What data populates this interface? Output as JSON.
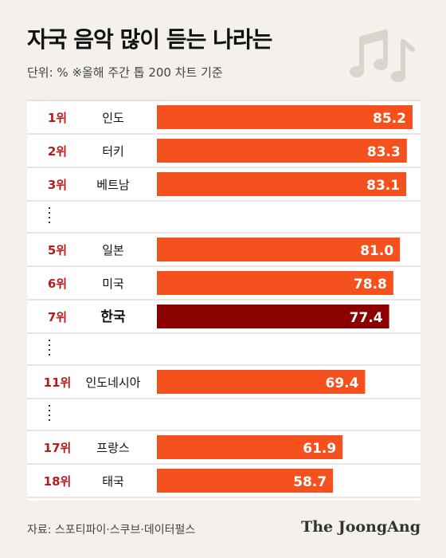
{
  "header": {
    "title": "자국 음악 많이 듣는 나라는",
    "unit": "단위: %   ※올해 주간 톱 200 차트 기준"
  },
  "footer": {
    "source": "자료: 스포티파이·스쿠브·데이터펄스",
    "publisher": "The JoongAng"
  },
  "colors": {
    "bar": "#f4511e",
    "highlight": "#8b0000",
    "rank": "#b71c1c",
    "background": "#f4f1ec",
    "row": "#ffffff"
  },
  "chart_data": {
    "type": "bar",
    "orientation": "horizontal",
    "title": "자국 음악 많이 듣는 나라는",
    "xlabel": "",
    "ylabel": "",
    "xlim": [
      0,
      85.2
    ],
    "grid": false,
    "legend": "none",
    "categories": [
      "인도",
      "터키",
      "베트남",
      "일본",
      "미국",
      "한국",
      "인도네시아",
      "프랑스",
      "태국"
    ],
    "ranks": [
      "1위",
      "2위",
      "3위",
      "5위",
      "6위",
      "7위",
      "11위",
      "17위",
      "18위"
    ],
    "values": [
      85.2,
      83.3,
      83.1,
      81.0,
      78.8,
      77.4,
      69.4,
      61.9,
      58.7
    ],
    "value_labels": [
      "85.2",
      "83.3",
      "83.1",
      "81.0",
      "78.8",
      "77.4",
      "69.4",
      "61.9",
      "58.7"
    ],
    "highlight": "한국",
    "gaps_after": [
      "3위",
      "7위",
      "11위"
    ]
  }
}
